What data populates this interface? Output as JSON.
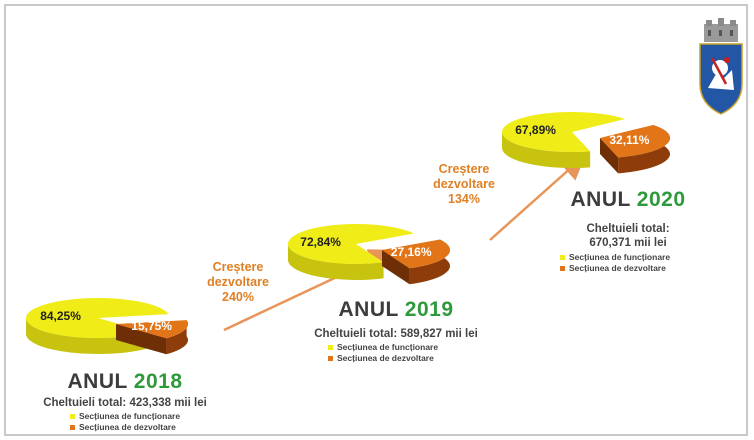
{
  "chart_data": {
    "type": "pie",
    "series_labels": [
      "Secțiunea de funcționare",
      "Secțiunea de dezvoltare"
    ],
    "colors": {
      "functionare": "#f0ec17",
      "dezvoltare": "#e27517",
      "year_accent": "#2e9a3c",
      "growth_text": "#e08024"
    },
    "pies": [
      {
        "year": "2018",
        "anul_label": "ANUL",
        "total_label": "Cheltuieli total: 423,338 mii lei",
        "slices": [
          {
            "value": 84.25,
            "label": "84,25%"
          },
          {
            "value": 15.75,
            "label": "15,75%"
          }
        ]
      },
      {
        "year": "2019",
        "anul_label": "ANUL",
        "total_label": "Cheltuieli total: 589,827 mii lei",
        "slices": [
          {
            "value": 72.84,
            "label": "72,84%"
          },
          {
            "value": 27.16,
            "label": "27,16%"
          }
        ]
      },
      {
        "year": "2020",
        "anul_label": "ANUL",
        "total_line1": "Cheltuieli total:",
        "total_line2": "670,371 mii lei",
        "slices": [
          {
            "value": 67.89,
            "label": "67,89%"
          },
          {
            "value": 32.11,
            "label": "32,11%"
          }
        ]
      }
    ],
    "growth": [
      {
        "line1": "Creștere",
        "line2": "dezvoltare",
        "line3": "240%"
      },
      {
        "line1": "Creștere",
        "line2": "dezvoltare",
        "line3": "134%"
      }
    ]
  }
}
